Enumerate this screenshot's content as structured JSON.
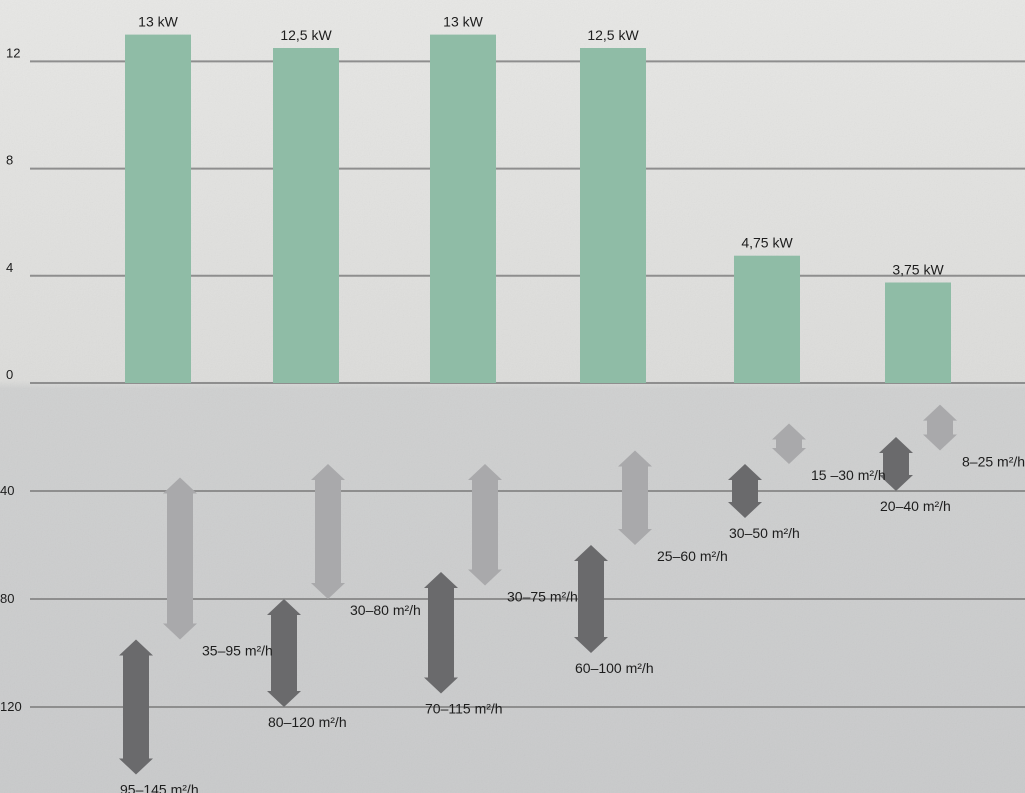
{
  "chart_data": {
    "type": "bar",
    "upper": {
      "ticks": [
        0,
        4,
        8,
        12
      ],
      "tick_labels": [
        "0",
        "4",
        "8",
        "12"
      ],
      "ylim": [
        0,
        13.8
      ],
      "values": [
        13,
        12.5,
        13,
        12.5,
        4.75,
        3.75
      ],
      "labels": [
        "13 kW",
        "12,5 kW",
        "13 kW",
        "12,5 kW",
        "4,75 kW",
        "3,75 kW"
      ],
      "color": "#8fbca6"
    },
    "lower": {
      "ticks": [
        40,
        80,
        120
      ],
      "tick_labels": [
        "40",
        "80",
        "120"
      ],
      "ylim": [
        0,
        150
      ],
      "pairs": [
        {
          "dark": {
            "range": [
              95,
              145
            ],
            "label": "95–145 m²/h"
          },
          "light": {
            "range": [
              35,
              95
            ],
            "label": "35–95 m²/h"
          }
        },
        {
          "dark": {
            "range": [
              80,
              120
            ],
            "label": "80–120 m²/h"
          },
          "light": {
            "range": [
              30,
              80
            ],
            "label": "30–80 m²/h"
          }
        },
        {
          "dark": {
            "range": [
              70,
              115
            ],
            "label": "70–115 m²/h"
          },
          "light": {
            "range": [
              30,
              75
            ],
            "label": "30–75 m²/h"
          }
        },
        {
          "dark": {
            "range": [
              60,
              100
            ],
            "label": "60–100 m²/h"
          },
          "light": {
            "range": [
              25,
              60
            ],
            "label": "25–60 m²/h"
          }
        },
        {
          "dark": {
            "range": [
              30,
              50
            ],
            "label": "30–50 m²/h"
          },
          "light": {
            "range": [
              15,
              30
            ],
            "label": "15 –30 m²/h"
          }
        },
        {
          "dark": {
            "range": [
              20,
              40
            ],
            "label": "20–40 m²/h"
          },
          "light": {
            "range": [
              8,
              25
            ],
            "label": "8–25 m²/h"
          }
        }
      ],
      "dark_color": "#6a6a6c",
      "light_color": "#a9a9ab"
    },
    "gridline_color": "#8e8e8e",
    "text_color": "#1d1d1d"
  }
}
